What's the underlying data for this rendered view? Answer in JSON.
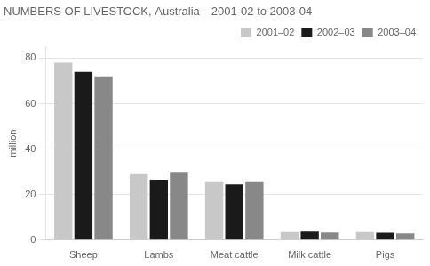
{
  "chart_data": {
    "type": "bar",
    "title": "NUMBERS OF LIVESTOCK, Australia—2001-02 to 2003-04",
    "ylabel": "million",
    "categories": [
      "Sheep",
      "Lambs",
      "Meat cattle",
      "Milk cattle",
      "Pigs"
    ],
    "series": [
      {
        "name": "2001–02",
        "color": "#c8c8c8",
        "values": [
          78,
          29,
          25.5,
          3.5,
          3.5
        ]
      },
      {
        "name": "2002–03",
        "color": "#1a1a1a",
        "values": [
          74,
          26.5,
          24.5,
          3.7,
          3.2
        ]
      },
      {
        "name": "2003–04",
        "color": "#888888",
        "values": [
          72,
          30,
          25.5,
          3.3,
          3.0
        ]
      }
    ],
    "ylim": [
      0,
      85
    ],
    "yticks": [
      0,
      20,
      40,
      60,
      80
    ],
    "grid": true,
    "legend": "upper right"
  }
}
